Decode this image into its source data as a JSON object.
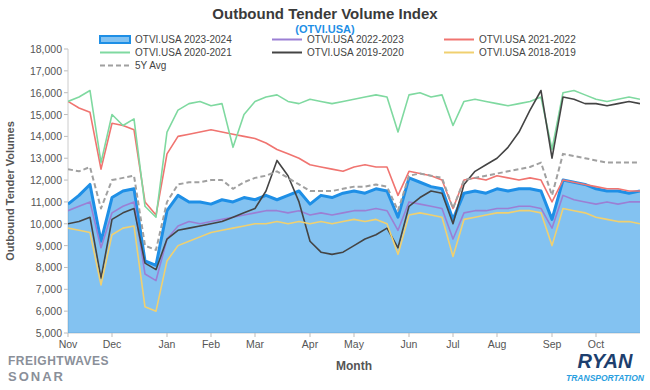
{
  "chart_data": {
    "type": "line",
    "title": "Outbound Tender Volume Index",
    "subtitle": "(OTVI.USA)",
    "x_label": "Month",
    "y_label": "Outbound Tender Volumes",
    "logo_left": [
      "FREIGHTWAVES",
      "SONAR"
    ],
    "logo_right": [
      "RYAN",
      "TRANSPORTATION"
    ],
    "categories": [
      "Nov",
      null,
      null,
      null,
      "Dec",
      null,
      null,
      null,
      null,
      "Jan",
      null,
      null,
      null,
      "Feb",
      null,
      null,
      null,
      "Mar",
      null,
      null,
      null,
      null,
      "Apr",
      null,
      null,
      null,
      "May",
      null,
      null,
      null,
      null,
      "Jun",
      null,
      null,
      null,
      "Jul",
      null,
      null,
      null,
      "Aug",
      null,
      null,
      null,
      null,
      "Sep",
      null,
      null,
      null,
      "Oct",
      null,
      null,
      null,
      null
    ],
    "ylim": [
      5000,
      18000
    ],
    "yticks": [
      {
        "value": 5000,
        "label": "5,000"
      },
      {
        "value": 6000,
        "label": "6,000"
      },
      {
        "value": 7000,
        "label": "7,000"
      },
      {
        "value": 8000,
        "label": "8,000"
      },
      {
        "value": 9000,
        "label": "9,000"
      },
      {
        "value": 10000,
        "label": "10,000"
      },
      {
        "value": 11000,
        "label": "11,000"
      },
      {
        "value": 12000,
        "label": "12,000"
      },
      {
        "value": 13000,
        "label": "13,000"
      },
      {
        "value": 14000,
        "label": "14,000"
      },
      {
        "value": 15000,
        "label": "15,000"
      },
      {
        "value": 16000,
        "label": "16,000"
      },
      {
        "value": 17000,
        "label": "17,000"
      },
      {
        "value": 18000,
        "label": "18,000"
      }
    ],
    "grid": false,
    "legend": "top-left",
    "series": [
      {
        "name": "OTVI.USA 2023-2024",
        "type": "area",
        "color": "#1e8fe6",
        "values": [
          10900,
          11300,
          11800,
          9200,
          11200,
          11500,
          11600,
          8300,
          8100,
          10600,
          11300,
          11000,
          11000,
          10900,
          11100,
          11000,
          11200,
          11100,
          11300,
          11100,
          11300,
          11500,
          10900,
          11300,
          11200,
          11400,
          11500,
          11400,
          11600,
          11500,
          10300,
          12100,
          11900,
          11700,
          11600,
          10200,
          11400,
          11500,
          11400,
          11600,
          11500,
          11600,
          11600,
          11500,
          10200,
          12000,
          11900,
          11800,
          11600,
          11500,
          11500,
          11400,
          11500
        ]
      },
      {
        "name": "OTVI.USA 2022-2023",
        "type": "line",
        "color": "#9b7fd4",
        "values": [
          10600,
          10800,
          11000,
          8900,
          10500,
          10800,
          11000,
          7700,
          7400,
          9300,
          9900,
          10100,
          10000,
          10100,
          10200,
          10300,
          10400,
          10500,
          10600,
          10600,
          10500,
          10600,
          10400,
          10500,
          10400,
          10500,
          10600,
          10600,
          10700,
          10600,
          9700,
          11000,
          10900,
          10800,
          10700,
          9300,
          10500,
          10600,
          10600,
          10700,
          10700,
          10800,
          10800,
          10700,
          9800,
          11300,
          11100,
          11000,
          10900,
          11000,
          10900,
          11000,
          11000
        ]
      },
      {
        "name": "OTVI.USA 2021-2022",
        "type": "line",
        "color": "#f07470",
        "values": [
          15600,
          15300,
          15100,
          12500,
          14600,
          14500,
          14300,
          11000,
          10400,
          13200,
          14000,
          14100,
          14200,
          14300,
          14200,
          14100,
          14000,
          13900,
          13700,
          13400,
          13200,
          13000,
          12700,
          12600,
          12500,
          12400,
          12600,
          12700,
          12600,
          12600,
          11300,
          12400,
          12300,
          12200,
          12000,
          10700,
          12000,
          12100,
          12000,
          12200,
          12100,
          12000,
          12100,
          12000,
          11000,
          12000,
          11900,
          11800,
          11700,
          11600,
          11600,
          11500,
          11500
        ]
      },
      {
        "name": "OTVI.USA 2020-2021",
        "type": "line",
        "color": "#7fd9a0",
        "values": [
          15600,
          15800,
          16100,
          12800,
          15000,
          14500,
          14800,
          10800,
          10300,
          14200,
          15200,
          15500,
          15600,
          15400,
          15500,
          13500,
          15000,
          15600,
          15800,
          15900,
          15600,
          15500,
          15700,
          15600,
          15500,
          15600,
          15700,
          15800,
          15900,
          15800,
          14200,
          15900,
          16000,
          15800,
          15900,
          14500,
          15600,
          15700,
          15600,
          15500,
          15400,
          15500,
          15600,
          15800,
          13400,
          16000,
          16100,
          15900,
          15700,
          15600,
          15700,
          15800,
          15700
        ]
      },
      {
        "name": "OTVI.USA 2019-2020",
        "type": "line",
        "color": "#444444",
        "values": [
          10000,
          10100,
          10300,
          7500,
          10200,
          10500,
          10700,
          8200,
          7900,
          9300,
          9700,
          9800,
          9900,
          10000,
          10100,
          10300,
          10500,
          10700,
          11500,
          12900,
          12200,
          11000,
          9200,
          8700,
          8600,
          8700,
          9000,
          9300,
          9500,
          9800,
          8900,
          10800,
          11200,
          11500,
          11400,
          10000,
          11800,
          12400,
          12700,
          13000,
          13500,
          14200,
          15200,
          16100,
          13000,
          15800,
          15700,
          15500,
          15500,
          15400,
          15500,
          15600,
          15500
        ]
      },
      {
        "name": "OTVI.USA 2018-2019",
        "type": "line",
        "color": "#f0d070",
        "values": [
          9800,
          9700,
          9600,
          7200,
          9500,
          9800,
          9900,
          6200,
          6000,
          8300,
          9000,
          9200,
          9400,
          9600,
          9700,
          9800,
          9900,
          10000,
          10000,
          10100,
          10000,
          10100,
          10000,
          10100,
          10000,
          10100,
          10200,
          10100,
          10200,
          10000,
          8600,
          10400,
          10500,
          10400,
          10300,
          8500,
          10200,
          10300,
          10400,
          10500,
          10500,
          10600,
          10600,
          10500,
          9000,
          10700,
          10600,
          10500,
          10300,
          10200,
          10100,
          10100,
          10000
        ]
      },
      {
        "name": "5Y Avg",
        "type": "line",
        "line_style": "dashed",
        "color": "#a0a0a0",
        "values": [
          12500,
          12400,
          12600,
          10700,
          12000,
          12100,
          12200,
          9000,
          8800,
          11000,
          11800,
          11900,
          11900,
          12000,
          12000,
          11600,
          11900,
          12100,
          12200,
          12400,
          12100,
          11800,
          11500,
          11500,
          11500,
          11600,
          11700,
          11700,
          11800,
          11700,
          10600,
          12200,
          12300,
          12200,
          12100,
          10700,
          12000,
          12100,
          12200,
          12300,
          12400,
          12500,
          12600,
          12800,
          11300,
          13200,
          13100,
          13000,
          12900,
          12800,
          12800,
          12800,
          12800
        ]
      }
    ]
  }
}
